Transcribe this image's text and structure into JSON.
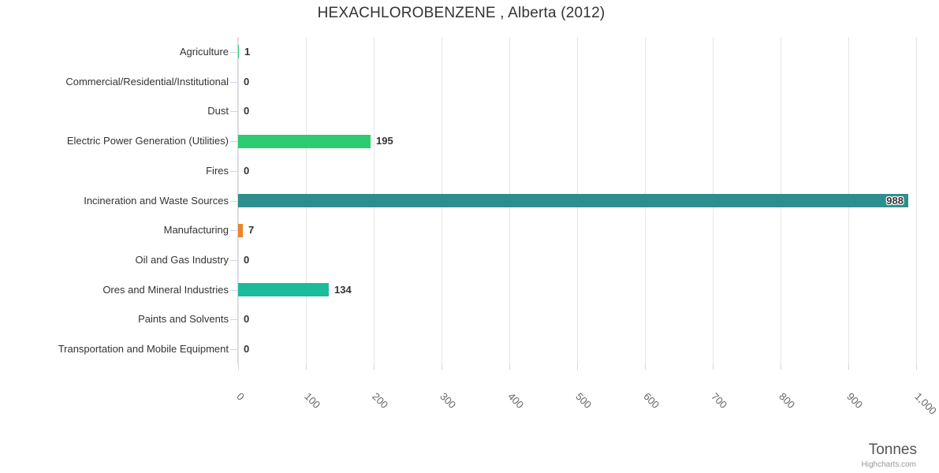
{
  "title": "HEXACHLOROBENZENE , Alberta (2012)",
  "credits_label": "Highcharts.com",
  "palette": {
    "grid_color": "#e6e6e6",
    "axis_color": "#ccd6eb",
    "title_color": "#333333",
    "label_color": "#333333",
    "tick_label_color": "#666666",
    "green": "#2ecc71",
    "teal": "#2d8e8e",
    "orange": "#ee8428",
    "turquoise": "#1bbc9b"
  },
  "chart_data": {
    "type": "bar",
    "title": "HEXACHLOROBENZENE , Alberta (2012)",
    "orientation": "horizontal",
    "categories": [
      "Agriculture",
      "Commercial/Residential/Institutional",
      "Dust",
      "Electric Power Generation (Utilities)",
      "Fires",
      "Incineration and Waste Sources",
      "Manufacturing",
      "Oil and Gas Industry",
      "Ores and Mineral Industries",
      "Paints and Solvents",
      "Transportation and Mobile Equipment"
    ],
    "values": [
      1,
      0,
      0,
      195,
      0,
      988,
      7,
      0,
      134,
      0,
      0
    ],
    "bar_colors": [
      "#2ecc71",
      null,
      null,
      "#2ecc71",
      null,
      "#2d8e8e",
      "#ee8428",
      null,
      "#1bbc9b",
      null,
      null
    ],
    "data_labels": [
      "1",
      "0",
      "0",
      "195",
      "0",
      "988",
      "7",
      "0",
      "134",
      "0",
      "0"
    ],
    "xlabel": "Tonnes",
    "ylabel": "",
    "xlim": [
      0,
      1000
    ],
    "x_ticks": [
      "0",
      "100",
      "200",
      "300",
      "400",
      "500",
      "600",
      "700",
      "800",
      "900",
      "1,000"
    ],
    "grid": true,
    "legend": false
  }
}
